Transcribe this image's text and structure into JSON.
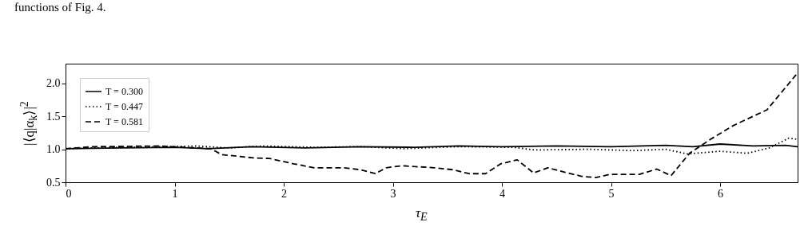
{
  "chart_data": {
    "type": "line",
    "xlabel": "τ$_{E}$",
    "ylabel": "|⟨q|α$_{k}$⟩|$^{2}$",
    "annotations": [
      "functions of Fig. 4."
    ],
    "xlim": [
      0,
      6.71
    ],
    "ylim": [
      0.5,
      2.3
    ],
    "xticks": [
      0,
      1,
      2,
      3,
      4,
      5,
      6
    ],
    "yticks": [
      {
        "value": 0.5,
        "label": "0.5"
      },
      {
        "value": 1,
        "label": "1.0"
      },
      {
        "value": 1.5,
        "label": "1.5"
      },
      {
        "value": 2,
        "label": "2.0"
      }
    ],
    "grid": false,
    "legend": "top left",
    "series": [
      {
        "name": "T = 0.300",
        "color": "#000000",
        "line_style": "solid",
        "x": [
          0,
          0.5,
          1,
          1.3,
          1.7,
          2.2,
          2.7,
          3.2,
          3.6,
          4.0,
          4.5,
          5.0,
          5.5,
          5.75,
          6.0,
          6.3,
          6.6,
          6.71
        ],
        "values": [
          1.01,
          1.02,
          1.03,
          1.01,
          1.04,
          1.02,
          1.04,
          1.03,
          1.05,
          1.04,
          1.05,
          1.04,
          1.06,
          1.04,
          1.08,
          1.05,
          1.06,
          1.04
        ]
      },
      {
        "name": "T = 0.447",
        "color": "#000000",
        "line_style": "dotted",
        "x": [
          0,
          0.5,
          0.9,
          1.2,
          1.5,
          1.8,
          2.3,
          2.7,
          3.1,
          3.6,
          4.1,
          4.3,
          4.8,
          5.2,
          5.5,
          5.7,
          6.0,
          6.25,
          6.45,
          6.63,
          6.71
        ],
        "values": [
          1.01,
          1.03,
          1.04,
          1.05,
          1.02,
          1.05,
          1.03,
          1.04,
          1.01,
          1.04,
          1.03,
          0.99,
          1.0,
          0.98,
          1.0,
          0.93,
          0.97,
          0.94,
          1.02,
          1.17,
          1.15
        ]
      },
      {
        "name": "T = 0.581",
        "color": "#000000",
        "line_style": "dashed",
        "x": [
          0,
          0.26,
          0.86,
          1.33,
          1.43,
          1.72,
          1.87,
          2.09,
          2.28,
          2.55,
          2.7,
          2.84,
          2.94,
          3.08,
          3.38,
          3.55,
          3.7,
          3.85,
          3.99,
          4.14,
          4.29,
          4.42,
          4.58,
          4.73,
          4.86,
          4.99,
          5.26,
          5.42,
          5.55,
          5.72,
          5.92,
          6.12,
          6.43,
          6.71
        ],
        "values": [
          1.01,
          1.04,
          1.05,
          1.01,
          0.92,
          0.87,
          0.86,
          0.78,
          0.72,
          0.72,
          0.69,
          0.63,
          0.72,
          0.75,
          0.72,
          0.69,
          0.63,
          0.63,
          0.78,
          0.84,
          0.64,
          0.72,
          0.65,
          0.59,
          0.57,
          0.62,
          0.62,
          0.7,
          0.6,
          0.94,
          1.16,
          1.36,
          1.6,
          2.16
        ]
      }
    ]
  }
}
